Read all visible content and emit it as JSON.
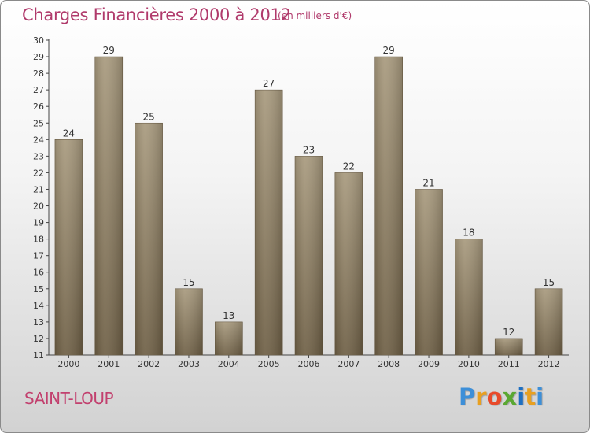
{
  "header": {
    "title": "Charges Financières 2000 à 2012",
    "unit": "(en milliers d'€)"
  },
  "footer": {
    "commune": "SAINT-LOUP",
    "logo_letters": [
      "P",
      "r",
      "o",
      "x",
      "i",
      "t",
      "i"
    ],
    "logo_colors": [
      "#3d8fd8",
      "#e8a020",
      "#e84a2a",
      "#5aa832",
      "#1e6fc2",
      "#e8a020",
      "#3d8fd8"
    ]
  },
  "colors": {
    "bar_light": "#a89a7e",
    "bar_dark": "#6e5f45",
    "axis": "#444444",
    "grid": "#dddddd"
  },
  "chart_data": {
    "type": "bar",
    "title": "Charges Financières 2000 à 2012",
    "subtitle": "(en milliers d'€)",
    "categories": [
      "2000",
      "2001",
      "2002",
      "2003",
      "2004",
      "2005",
      "2006",
      "2007",
      "2008",
      "2009",
      "2010",
      "2011",
      "2012"
    ],
    "values": [
      24,
      29,
      25,
      15,
      13,
      27,
      23,
      22,
      29,
      21,
      18,
      12,
      15
    ],
    "ylim": [
      11,
      30
    ],
    "yticks": [
      11,
      12,
      13,
      14,
      15,
      16,
      17,
      18,
      19,
      20,
      21,
      22,
      23,
      24,
      25,
      26,
      27,
      28,
      29,
      30
    ],
    "xlabel": "",
    "ylabel": "",
    "grid": false
  }
}
